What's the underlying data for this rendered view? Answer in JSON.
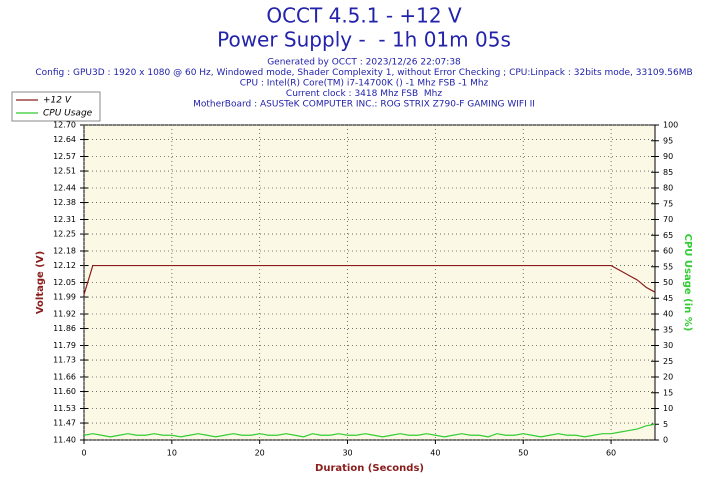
{
  "chart_data": {
    "type": "line",
    "title": "OCCT 4.5.1 - +12 V",
    "subtitle": "Power Supply -  - 1h 01m 05s",
    "notes": [
      "Generated by OCCT : 2023/12/26 22:07:38",
      "Config : GPU3D : 1920 x 1080 @ 60 Hz, Windowed mode, Shader Complexity 1, without Error Checking ; CPU:Linpack : 32bits mode, 33109.56MB",
      "CPU : Intel(R) Core(TM) i7-14700K () -1 Mhz FSB -1 Mhz",
      "Current clock : 3418 Mhz FSB  Mhz",
      "MotherBoard : ASUSTeK COMPUTER INC.: ROG STRIX Z790-F GAMING WIFI II"
    ],
    "x_label": "Duration (Seconds)",
    "y_label": "Voltage (V)",
    "y2_label": "CPU Usage (in %)",
    "x": [
      0,
      1,
      2,
      3,
      4,
      5,
      6,
      7,
      8,
      9,
      10,
      11,
      12,
      13,
      14,
      15,
      16,
      17,
      18,
      19,
      20,
      21,
      22,
      23,
      24,
      25,
      26,
      27,
      28,
      29,
      30,
      31,
      32,
      33,
      34,
      35,
      36,
      37,
      38,
      39,
      40,
      41,
      42,
      43,
      44,
      45,
      46,
      47,
      48,
      49,
      50,
      51,
      52,
      53,
      54,
      55,
      56,
      57,
      58,
      59,
      60,
      61,
      62,
      63,
      64,
      65
    ],
    "xlim": [
      0,
      65
    ],
    "xticks": [
      0,
      10,
      20,
      30,
      40,
      50,
      60
    ],
    "ylim": [
      11.4,
      12.7
    ],
    "yticks": [
      {
        "value": 11.4,
        "label": "11.40"
      },
      {
        "value": 11.47,
        "label": "11.47"
      },
      {
        "value": 11.53,
        "label": "11.53"
      },
      {
        "value": 11.6,
        "label": "11.60"
      },
      {
        "value": 11.66,
        "label": "11.66"
      },
      {
        "value": 11.73,
        "label": "11.73"
      },
      {
        "value": 11.79,
        "label": "11.79"
      },
      {
        "value": 11.86,
        "label": "11.86"
      },
      {
        "value": 11.92,
        "label": "11.92"
      },
      {
        "value": 11.99,
        "label": "11.99"
      },
      {
        "value": 12.05,
        "label": "12.05"
      },
      {
        "value": 12.12,
        "label": "12.12"
      },
      {
        "value": 12.18,
        "label": "12.18"
      },
      {
        "value": 12.25,
        "label": "12.25"
      },
      {
        "value": 12.31,
        "label": "12.31"
      },
      {
        "value": 12.38,
        "label": "12.38"
      },
      {
        "value": 12.44,
        "label": "12.44"
      },
      {
        "value": 12.51,
        "label": "12.51"
      },
      {
        "value": 12.57,
        "label": "12.57"
      },
      {
        "value": 12.64,
        "label": "12.64"
      },
      {
        "value": 12.7,
        "label": "12.70"
      }
    ],
    "y2lim": [
      0,
      100
    ],
    "y2ticks": [
      0,
      5,
      10,
      15,
      20,
      25,
      30,
      35,
      40,
      45,
      50,
      55,
      60,
      65,
      70,
      75,
      80,
      85,
      90,
      95,
      100
    ],
    "grid": true,
    "legend": "top-left",
    "series": [
      {
        "name": "+12 V",
        "color": "#8b1c1c",
        "axis": "y",
        "values": [
          12.0,
          12.12,
          12.12,
          12.12,
          12.12,
          12.12,
          12.12,
          12.12,
          12.12,
          12.12,
          12.12,
          12.12,
          12.12,
          12.12,
          12.12,
          12.12,
          12.12,
          12.12,
          12.12,
          12.12,
          12.12,
          12.12,
          12.12,
          12.12,
          12.12,
          12.12,
          12.12,
          12.12,
          12.12,
          12.12,
          12.12,
          12.12,
          12.12,
          12.12,
          12.12,
          12.12,
          12.12,
          12.12,
          12.12,
          12.12,
          12.12,
          12.12,
          12.12,
          12.12,
          12.12,
          12.12,
          12.12,
          12.12,
          12.12,
          12.12,
          12.12,
          12.12,
          12.12,
          12.12,
          12.12,
          12.12,
          12.12,
          12.12,
          12.12,
          12.12,
          12.12,
          12.1,
          12.08,
          12.06,
          12.03,
          12.01
        ]
      },
      {
        "name": "CPU Usage",
        "color": "#33cc33",
        "axis": "y2",
        "values": [
          1.5,
          2,
          1.5,
          1,
          1.5,
          2,
          1.5,
          1.5,
          2,
          1.5,
          1.5,
          1,
          1.5,
          2,
          1.5,
          1,
          1.5,
          2,
          1.5,
          1.5,
          2,
          1.5,
          1.5,
          2,
          1.5,
          1,
          2,
          1.5,
          1.5,
          2,
          1.5,
          1.5,
          2,
          1.5,
          1,
          1.5,
          2,
          1.5,
          1.5,
          2,
          1.5,
          1,
          1.5,
          2,
          1.5,
          1.5,
          1,
          2,
          1.5,
          1.5,
          2,
          1.5,
          1,
          1.5,
          2,
          1.5,
          1.5,
          1,
          1.5,
          2,
          2,
          2.5,
          3,
          3.5,
          4.5,
          5
        ]
      }
    ]
  }
}
